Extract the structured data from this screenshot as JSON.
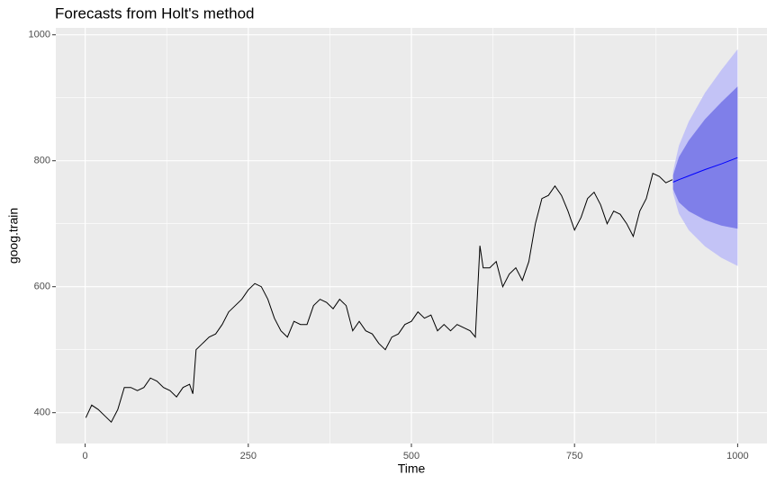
{
  "chart_data": {
    "type": "line",
    "title": "Forecasts from Holt's method",
    "x_label": "Time",
    "y_label": "goog.train",
    "xlim": [
      -45,
      1045
    ],
    "ylim": [
      351,
      1011
    ],
    "xticks": [
      0,
      250,
      500,
      750,
      1000
    ],
    "yticks": [
      400,
      600,
      800,
      1000
    ],
    "grid": true,
    "series": [
      {
        "color": "#000000",
        "x": [
          1,
          10,
          20,
          30,
          40,
          50,
          60,
          70,
          80,
          90,
          100,
          110,
          120,
          130,
          140,
          150,
          160,
          165,
          170,
          180,
          190,
          200,
          210,
          220,
          230,
          240,
          250,
          260,
          270,
          280,
          290,
          300,
          310,
          320,
          330,
          340,
          350,
          360,
          370,
          380,
          390,
          400,
          410,
          420,
          430,
          440,
          450,
          460,
          470,
          480,
          490,
          500,
          510,
          520,
          530,
          540,
          550,
          560,
          570,
          580,
          590,
          598,
          605,
          610,
          620,
          630,
          640,
          650,
          660,
          670,
          680,
          690,
          700,
          710,
          720,
          730,
          740,
          750,
          760,
          770,
          780,
          790,
          800,
          810,
          820,
          830,
          840,
          850,
          860,
          870,
          880,
          890,
          900
        ],
        "values": [
          392,
          412,
          405,
          395,
          385,
          405,
          440,
          440,
          435,
          440,
          455,
          450,
          440,
          435,
          425,
          440,
          445,
          430,
          500,
          510,
          520,
          525,
          540,
          560,
          570,
          580,
          595,
          605,
          600,
          580,
          550,
          530,
          520,
          545,
          540,
          540,
          570,
          580,
          575,
          565,
          580,
          570,
          530,
          545,
          530,
          525,
          510,
          500,
          520,
          525,
          540,
          545,
          560,
          550,
          555,
          530,
          540,
          530,
          540,
          535,
          530,
          520,
          665,
          630,
          630,
          640,
          600,
          620,
          630,
          610,
          640,
          700,
          740,
          745,
          760,
          745,
          720,
          690,
          710,
          740,
          750,
          730,
          700,
          720,
          715,
          700,
          680,
          720,
          740,
          780,
          775,
          765,
          770
        ]
      }
    ],
    "forecast": {
      "x": [
        901,
        910,
        925,
        950,
        975,
        1000
      ],
      "mean": [
        766,
        770,
        776,
        786,
        795,
        805
      ],
      "lo80": [
        755,
        734,
        720,
        706,
        697,
        692
      ],
      "hi80": [
        777,
        806,
        832,
        866,
        893,
        918
      ],
      "lo95": [
        749,
        716,
        690,
        664,
        646,
        633
      ],
      "hi95": [
        783,
        824,
        862,
        908,
        944,
        977
      ],
      "mean_color": "#0000ff",
      "band80_color": "#7f7fe9",
      "band95_color": "#c3c3f6"
    }
  }
}
